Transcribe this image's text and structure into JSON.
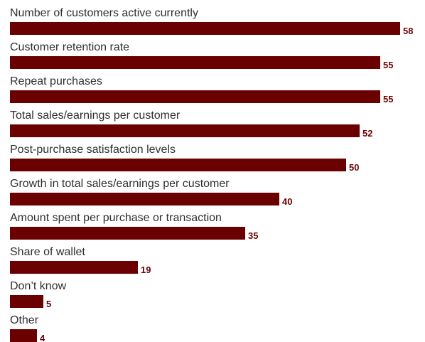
{
  "colors": {
    "bar": "#6b0000",
    "value_label": "#6b0000",
    "category_label": "#2f2f2f"
  },
  "chart_data": {
    "type": "bar",
    "orientation": "horizontal",
    "title": "",
    "xlabel": "",
    "ylabel": "",
    "xlim": [
      0,
      58
    ],
    "grid": false,
    "categories": [
      "Number of customers active currently",
      "Customer retention rate",
      "Repeat purchases",
      "Total sales/earnings per customer",
      "Post-purchase satisfaction levels",
      "Growth in total sales/earnings per customer",
      "Amount spent per purchase or transaction",
      "Share of wallet",
      "Don’t know",
      "Other"
    ],
    "values": [
      58,
      55,
      55,
      52,
      50,
      40,
      35,
      19,
      5,
      4
    ]
  }
}
